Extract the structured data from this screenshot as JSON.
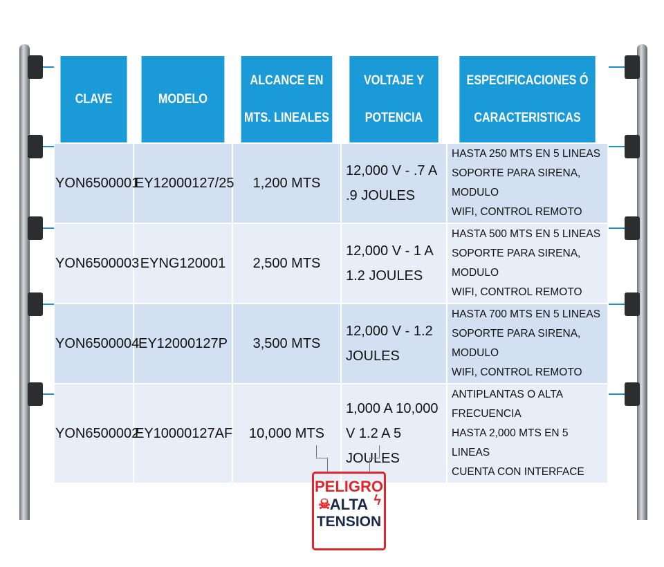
{
  "headers": [
    "CLAVE",
    "MODELO",
    "ALCANCE EN MTS. LINEALES",
    "VOLTAJE Y POTENCIA",
    "ESPECIFICACIONES Ó CARACTERISTICAS"
  ],
  "rows": [
    {
      "clave": "YON6500001",
      "modelo": "EY12000127/25",
      "alcance": "1,200 MTS",
      "voltaje": "12,000 V - .7 A .9 JOULES",
      "specs": [
        "HASTA 250 MTS EN 5 LINEAS",
        "SOPORTE PARA SIRENA, MODULO",
        "WIFI, CONTROL REMOTO"
      ]
    },
    {
      "clave": "YON6500003",
      "modelo": "EYNG120001",
      "alcance": "2,500 MTS",
      "voltaje": "12,000 V - 1 A 1.2 JOULES",
      "specs": [
        "HASTA 500 MTS EN 5 LINEAS",
        "SOPORTE PARA SIRENA, MODULO",
        "WIFI, CONTROL REMOTO"
      ]
    },
    {
      "clave": "YON6500004",
      "modelo": "EY12000127P",
      "alcance": "3,500 MTS",
      "voltaje": "12,000 V - 1.2 JOULES",
      "specs": [
        "HASTA 700 MTS EN 5 LINEAS",
        "SOPORTE PARA SIRENA, MODULO",
        "WIFI, CONTROL REMOTO"
      ]
    },
    {
      "clave": "YON6500002",
      "modelo": "EY10000127AF",
      "alcance": "10,000 MTS",
      "voltaje": "1,000 A 10,000 V 1.2 A 5 JOULES",
      "specs": [
        "ANTIPLANTAS O ALTA FRECUENCIA",
        "HASTA 2,000 MTS EN 5 LINEAS",
        "CUENTA CON INTERFACE"
      ]
    }
  ],
  "sign": {
    "line1": "PELIGRO",
    "line2": "ALTA",
    "line3": "TENSION"
  },
  "colors": {
    "header": "#1a9ad6",
    "row_dark": "#d2e0f2",
    "row_light": "#e8eef8",
    "sign_red": "#e0262b",
    "sign_navy": "#1b2a4a"
  }
}
